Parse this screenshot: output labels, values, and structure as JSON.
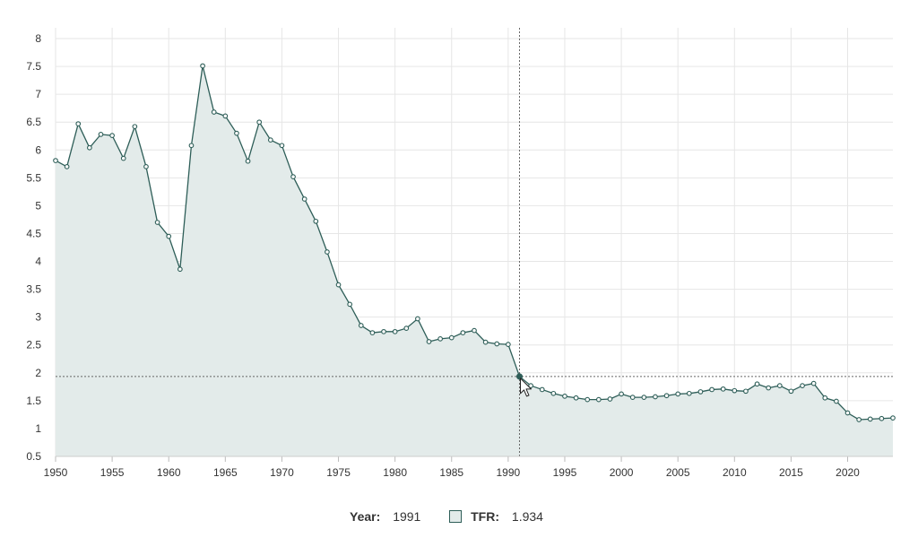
{
  "chart_data": {
    "type": "area",
    "title": "",
    "xlabel": "",
    "ylabel": "",
    "xlim": [
      1950,
      2024
    ],
    "ylim": [
      0.5,
      8
    ],
    "x_ticks": [
      1950,
      1955,
      1960,
      1965,
      1970,
      1975,
      1980,
      1985,
      1990,
      1995,
      2000,
      2005,
      2010,
      2015,
      2020
    ],
    "y_ticks": [
      0.5,
      1,
      1.5,
      2,
      2.5,
      3,
      3.5,
      4,
      4.5,
      5,
      5.5,
      6,
      6.5,
      7,
      7.5,
      8
    ],
    "grid": true,
    "series": [
      {
        "name": "TFR",
        "color": "#2e5e58",
        "fill": "#e3ebea",
        "x": [
          1950,
          1951,
          1952,
          1953,
          1954,
          1955,
          1956,
          1957,
          1958,
          1959,
          1960,
          1961,
          1962,
          1963,
          1964,
          1965,
          1966,
          1967,
          1968,
          1969,
          1970,
          1971,
          1972,
          1973,
          1974,
          1975,
          1976,
          1977,
          1978,
          1979,
          1980,
          1981,
          1982,
          1983,
          1984,
          1985,
          1986,
          1987,
          1988,
          1989,
          1990,
          1991,
          1992,
          1993,
          1994,
          1995,
          1996,
          1997,
          1998,
          1999,
          2000,
          2001,
          2002,
          2003,
          2004,
          2005,
          2006,
          2007,
          2008,
          2009,
          2010,
          2011,
          2012,
          2013,
          2014,
          2015,
          2016,
          2017,
          2018,
          2019,
          2020,
          2021,
          2022,
          2023,
          2024
        ],
        "values": [
          5.81,
          5.7,
          6.47,
          6.04,
          6.28,
          6.26,
          5.85,
          6.42,
          5.7,
          4.7,
          4.45,
          3.86,
          6.08,
          7.51,
          6.68,
          6.61,
          6.3,
          5.8,
          6.5,
          6.18,
          6.08,
          5.52,
          5.12,
          4.72,
          4.17,
          3.58,
          3.23,
          2.85,
          2.72,
          2.74,
          2.74,
          2.8,
          2.97,
          2.56,
          2.61,
          2.63,
          2.72,
          2.76,
          2.55,
          2.52,
          2.51,
          1.934,
          1.77,
          1.7,
          1.63,
          1.58,
          1.55,
          1.52,
          1.52,
          1.53,
          1.62,
          1.56,
          1.56,
          1.57,
          1.59,
          1.62,
          1.63,
          1.66,
          1.7,
          1.71,
          1.68,
          1.67,
          1.8,
          1.73,
          1.77,
          1.67,
          1.77,
          1.81,
          1.55,
          1.49,
          1.28,
          1.16,
          1.17,
          1.18,
          1.19
        ]
      }
    ],
    "hover": {
      "x": 1991,
      "y": 1.934
    }
  },
  "legend": {
    "year_label": "Year:",
    "year_value": "1991",
    "tfr_label": "TFR:",
    "tfr_value": "1.934"
  }
}
